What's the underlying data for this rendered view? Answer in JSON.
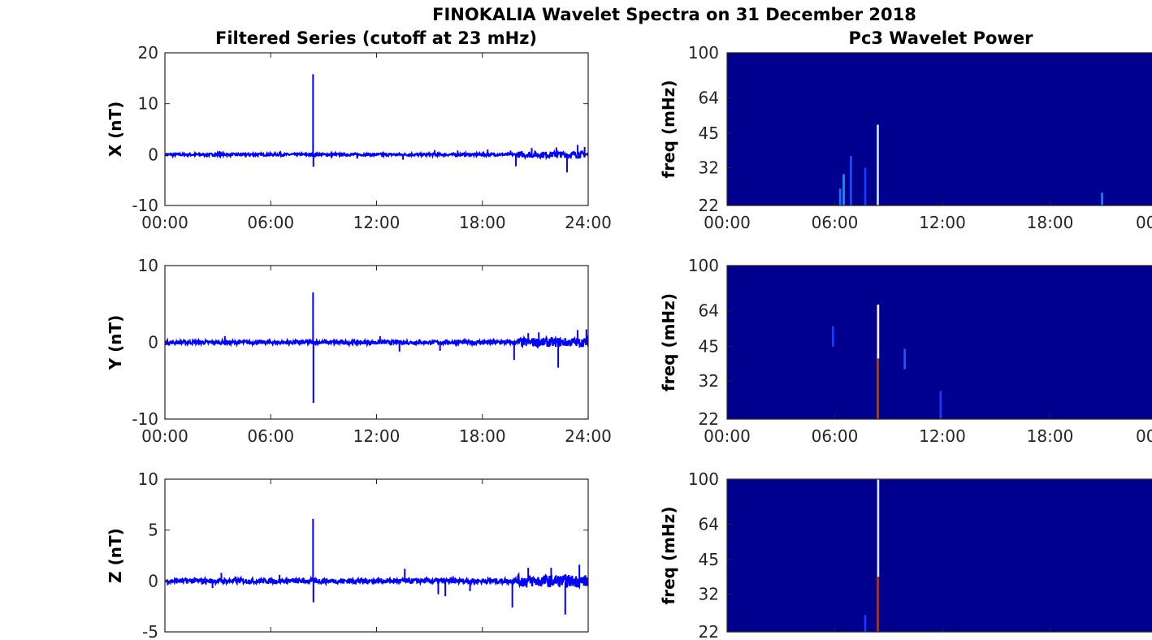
{
  "figure": {
    "title": "FINOKALIA Wavelet Spectra on 31 December 2018",
    "left_column_title": "Filtered Series (cutoff at 23 mHz)",
    "right_column_title": "Pc3 Wavelet Power"
  },
  "chart_data": [
    {
      "type": "line",
      "panel": "filtered-x",
      "ylabel": "X (nT)",
      "xlabel": "",
      "ylim": [
        -10,
        20
      ],
      "yticks": [
        "20",
        "10",
        "0",
        "-10"
      ],
      "xticks": [
        "00:00",
        "06:00",
        "12:00",
        "18:00",
        "24:00"
      ],
      "xlim_hours": [
        0,
        24
      ],
      "color": "#0000ff",
      "spikes": [
        {
          "x": 3.1,
          "y": 0.7
        },
        {
          "x": 6.5,
          "y": 0.6
        },
        {
          "x": 8.4,
          "y": 15.8
        },
        {
          "x": 8.42,
          "y": -2.4
        },
        {
          "x": 15.3,
          "y": 0.9
        },
        {
          "x": 16.6,
          "y": 0.8
        },
        {
          "x": 18.3,
          "y": 1.0
        },
        {
          "x": 19.6,
          "y": 0.8
        },
        {
          "x": 19.9,
          "y": -2.3
        },
        {
          "x": 20.8,
          "y": 1.3
        },
        {
          "x": 22.2,
          "y": 1.4
        },
        {
          "x": 22.8,
          "y": -3.5
        },
        {
          "x": 23.4,
          "y": 1.9
        },
        {
          "x": 23.8,
          "y": 1.5
        },
        {
          "x": 13.5,
          "y": -1.0
        },
        {
          "x": 10.9,
          "y": -0.8
        }
      ]
    },
    {
      "type": "line",
      "panel": "filtered-y",
      "ylabel": "Y (nT)",
      "xlabel": "",
      "ylim": [
        -10,
        10
      ],
      "yticks": [
        "10",
        "0",
        "-10"
      ],
      "xticks": [
        "00:00",
        "06:00",
        "12:00",
        "18:00",
        "24:00"
      ],
      "xlim_hours": [
        0,
        24
      ],
      "color": "#0000ff",
      "spikes": [
        {
          "x": 3.4,
          "y": 0.8
        },
        {
          "x": 8.4,
          "y": 6.5
        },
        {
          "x": 8.42,
          "y": -7.9
        },
        {
          "x": 13.3,
          "y": -1.2
        },
        {
          "x": 15.6,
          "y": -1.1
        },
        {
          "x": 19.8,
          "y": -2.3
        },
        {
          "x": 20.6,
          "y": 1.2
        },
        {
          "x": 21.2,
          "y": 1.3
        },
        {
          "x": 22.3,
          "y": -3.3
        },
        {
          "x": 23.4,
          "y": 1.6
        },
        {
          "x": 23.9,
          "y": 1.7
        },
        {
          "x": 12.2,
          "y": 0.8
        }
      ]
    },
    {
      "type": "line",
      "panel": "filtered-z",
      "ylabel": "Z (nT)",
      "xlabel": "",
      "ylim": [
        -5,
        10
      ],
      "yticks": [
        "10",
        "5",
        "0",
        "-5"
      ],
      "xticks": [],
      "xlim_hours": [
        0,
        24
      ],
      "color": "#0000ff",
      "spikes": [
        {
          "x": 2.7,
          "y": -0.7
        },
        {
          "x": 3.2,
          "y": 0.8
        },
        {
          "x": 6.5,
          "y": 0.6
        },
        {
          "x": 8.4,
          "y": 6.1
        },
        {
          "x": 8.42,
          "y": -2.1
        },
        {
          "x": 13.6,
          "y": 1.2
        },
        {
          "x": 15.5,
          "y": -1.3
        },
        {
          "x": 15.9,
          "y": -1.5
        },
        {
          "x": 19.7,
          "y": -2.6
        },
        {
          "x": 20.6,
          "y": 1.3
        },
        {
          "x": 21.9,
          "y": 1.3
        },
        {
          "x": 22.7,
          "y": -3.3
        },
        {
          "x": 23.5,
          "y": 1.6
        },
        {
          "x": 17.3,
          "y": -1.0
        }
      ]
    },
    {
      "type": "heatmap",
      "panel": "power-x",
      "ylabel": "freq (mHz)",
      "xlabel": "",
      "yscale": "log",
      "ylim": [
        22,
        100
      ],
      "yticks": [
        100,
        64,
        45,
        32,
        22
      ],
      "xticks": [
        "00:00",
        "06:00",
        "12:00",
        "18:00",
        "00"
      ],
      "xlim_hours": [
        0,
        24
      ],
      "background": "#00008f",
      "events": [
        {
          "x": 6.3,
          "f_low": 22,
          "f_high": 26,
          "color": "#1a6dff"
        },
        {
          "x": 6.5,
          "f_low": 22,
          "f_high": 30,
          "color": "#00a0ff"
        },
        {
          "x": 6.9,
          "f_low": 22,
          "f_high": 36,
          "color": "#1e4fff"
        },
        {
          "x": 7.7,
          "f_low": 22,
          "f_high": 32,
          "color": "#1a3cff"
        },
        {
          "x": 8.4,
          "f_low": 22,
          "f_high": 49,
          "color": "#cfe8ff"
        },
        {
          "x": 20.9,
          "f_low": 22,
          "f_high": 25,
          "color": "#2a7fff"
        }
      ]
    },
    {
      "type": "heatmap",
      "panel": "power-y",
      "ylabel": "freq (mHz)",
      "xlabel": "",
      "yscale": "log",
      "ylim": [
        22,
        100
      ],
      "yticks": [
        100,
        64,
        45,
        32,
        22
      ],
      "xticks": [
        "00:00",
        "06:00",
        "12:00",
        "18:00",
        "00"
      ],
      "xlim_hours": [
        0,
        24
      ],
      "background": "#00008f",
      "events": [
        {
          "x": 5.9,
          "f_low": 45,
          "f_high": 55,
          "color": "#1a3cff"
        },
        {
          "x": 8.4,
          "f_low": 22,
          "f_high": 68,
          "color": "#b04a00"
        },
        {
          "x": 8.42,
          "f_low": 40,
          "f_high": 68,
          "color": "#e8f4ff"
        },
        {
          "x": 9.9,
          "f_low": 36,
          "f_high": 44,
          "color": "#1e5bff"
        },
        {
          "x": 11.9,
          "f_low": 22,
          "f_high": 29,
          "color": "#1a3cff"
        }
      ]
    },
    {
      "type": "heatmap",
      "panel": "power-z",
      "ylabel": "freq (mHz)",
      "xlabel": "",
      "yscale": "log",
      "ylim": [
        22,
        100
      ],
      "yticks": [
        100,
        64,
        45,
        32,
        22
      ],
      "xticks": [],
      "xlim_hours": [
        0,
        24
      ],
      "background": "#00008f",
      "events": [
        {
          "x": 7.7,
          "f_low": 22,
          "f_high": 26,
          "color": "#1a3cff"
        },
        {
          "x": 8.4,
          "f_low": 22,
          "f_high": 38,
          "color": "#c83000"
        },
        {
          "x": 8.42,
          "f_low": 38,
          "f_high": 100,
          "color": "#d8eeff"
        }
      ]
    }
  ]
}
